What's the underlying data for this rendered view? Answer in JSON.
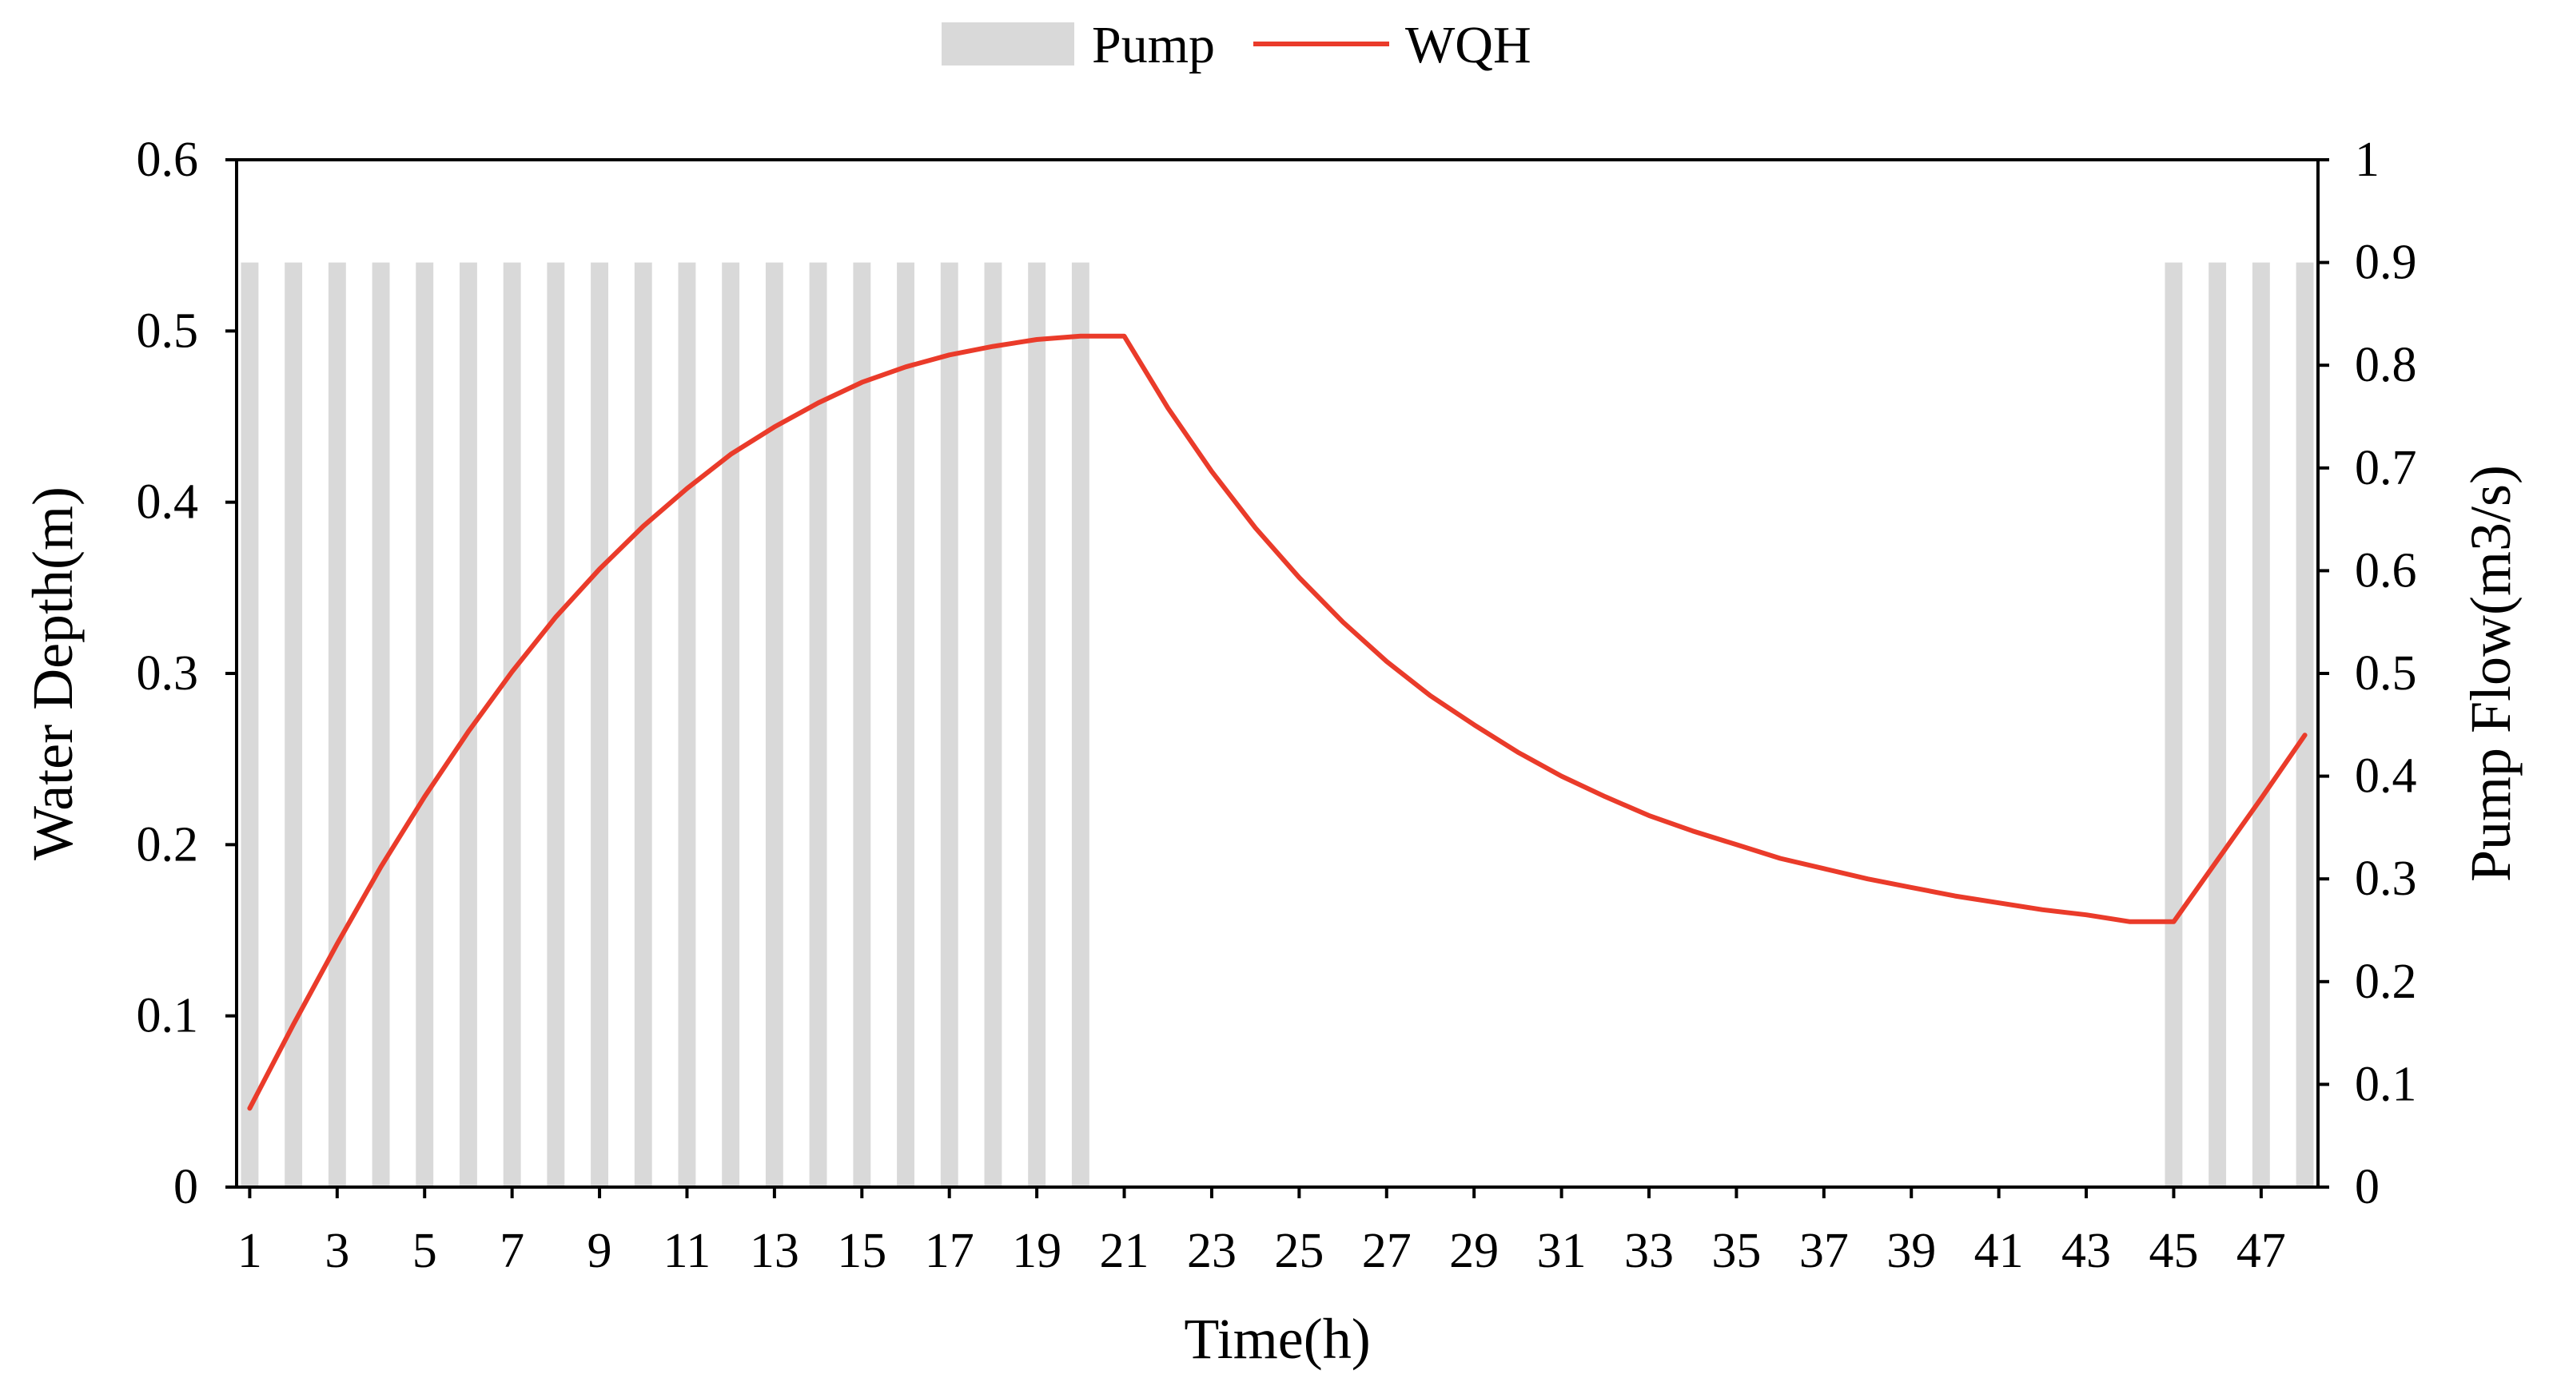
{
  "chart_data": {
    "type": "bar+line",
    "legend": {
      "placement": "top-center",
      "entries": [
        {
          "label": "Pump",
          "kind": "bar",
          "color": "#d9d9d9"
        },
        {
          "label": "WQH",
          "kind": "line",
          "color": "#ea3b2a"
        }
      ]
    },
    "xlabel": "Time(h)",
    "ylabel_left": "Water Depth(m)",
    "ylabel_right": "Pump Flow(m3/s)",
    "x_range": [
      1,
      48
    ],
    "x_tick_labels": [
      "1",
      "3",
      "5",
      "7",
      "9",
      "11",
      "13",
      "15",
      "17",
      "19",
      "21",
      "23",
      "25",
      "27",
      "29",
      "31",
      "33",
      "35",
      "37",
      "39",
      "41",
      "43",
      "45",
      "47"
    ],
    "ylim_left": [
      0,
      0.6
    ],
    "y_left_tick_labels": [
      "0",
      "0.1",
      "0.2",
      "0.3",
      "0.4",
      "0.5",
      "0.6"
    ],
    "ylim_right": [
      0,
      1
    ],
    "y_right_tick_labels": [
      "0",
      "0.1",
      "0.2",
      "0.3",
      "0.4",
      "0.5",
      "0.6",
      "0.7",
      "0.8",
      "0.9",
      "1"
    ],
    "pump_series": {
      "name": "Pump",
      "axis": "right",
      "hours": [
        1,
        2,
        3,
        4,
        5,
        6,
        7,
        8,
        9,
        10,
        11,
        12,
        13,
        14,
        15,
        16,
        17,
        18,
        19,
        20,
        21,
        22,
        23,
        24,
        25,
        26,
        27,
        28,
        29,
        30,
        31,
        32,
        33,
        34,
        35,
        36,
        37,
        38,
        39,
        40,
        41,
        42,
        43,
        44,
        45,
        46,
        47,
        48
      ],
      "values": [
        0.9,
        0.9,
        0.9,
        0.9,
        0.9,
        0.9,
        0.9,
        0.9,
        0.9,
        0.9,
        0.9,
        0.9,
        0.9,
        0.9,
        0.9,
        0.9,
        0.9,
        0.9,
        0.9,
        0.9,
        0,
        0,
        0,
        0,
        0,
        0,
        0,
        0,
        0,
        0,
        0,
        0,
        0,
        0,
        0,
        0,
        0,
        0,
        0,
        0,
        0,
        0,
        0,
        0,
        0.9,
        0.9,
        0.9,
        0.9
      ]
    },
    "wqh_series": {
      "name": "WQH",
      "axis": "left",
      "x": [
        1,
        2,
        3,
        4,
        5,
        6,
        7,
        8,
        9,
        10,
        11,
        12,
        13,
        14,
        15,
        16,
        17,
        18,
        19,
        20,
        20.5,
        21,
        22,
        23,
        24,
        25,
        26,
        27,
        28,
        29,
        30,
        31,
        32,
        33,
        34,
        35,
        36,
        37,
        38,
        39,
        40,
        41,
        42,
        43,
        44,
        44.5,
        45,
        46,
        47,
        48
      ],
      "values": [
        0.046,
        0.095,
        0.142,
        0.187,
        0.228,
        0.266,
        0.301,
        0.333,
        0.361,
        0.386,
        0.408,
        0.428,
        0.444,
        0.458,
        0.47,
        0.479,
        0.486,
        0.491,
        0.495,
        0.497,
        0.497,
        0.497,
        0.455,
        0.418,
        0.385,
        0.356,
        0.33,
        0.307,
        0.287,
        0.27,
        0.254,
        0.24,
        0.228,
        0.217,
        0.208,
        0.2,
        0.192,
        0.186,
        0.18,
        0.175,
        0.17,
        0.166,
        0.162,
        0.159,
        0.155,
        0.155,
        0.155,
        0.191,
        0.227,
        0.264
      ]
    }
  }
}
